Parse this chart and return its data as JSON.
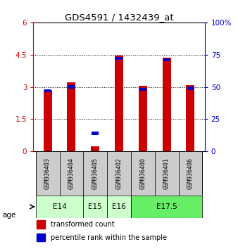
{
  "title": "GDS4591 / 1432439_at",
  "samples": [
    "GSM936403",
    "GSM936404",
    "GSM936405",
    "GSM936402",
    "GSM936400",
    "GSM936401",
    "GSM936406"
  ],
  "transformed_count": [
    2.85,
    3.2,
    0.22,
    4.45,
    3.05,
    4.35,
    3.08
  ],
  "percentile_rank_pct": [
    47,
    50,
    14,
    72,
    48,
    71,
    49
  ],
  "age_groups": [
    {
      "label": "E14",
      "start": 0,
      "end": 2,
      "color": "#ccffcc"
    },
    {
      "label": "E15",
      "start": 2,
      "end": 3,
      "color": "#ccffcc"
    },
    {
      "label": "E16",
      "start": 3,
      "end": 4,
      "color": "#ccffcc"
    },
    {
      "label": "E17.5",
      "start": 4,
      "end": 7,
      "color": "#66ee66"
    }
  ],
  "ylim_left": [
    0,
    6
  ],
  "ylim_right": [
    0,
    100
  ],
  "yticks_left": [
    0,
    1.5,
    3.0,
    4.5,
    6.0
  ],
  "ytick_labels_left": [
    "0",
    "1.5",
    "3",
    "4.5",
    "6"
  ],
  "yticks_right": [
    0,
    25,
    50,
    75,
    100
  ],
  "ytick_labels_right": [
    "0",
    "25",
    "50",
    "75",
    "100%"
  ],
  "red_color": "#cc0000",
  "blue_color": "#0000cc",
  "bg_color": "#ffffff",
  "sample_bg": "#cccccc"
}
